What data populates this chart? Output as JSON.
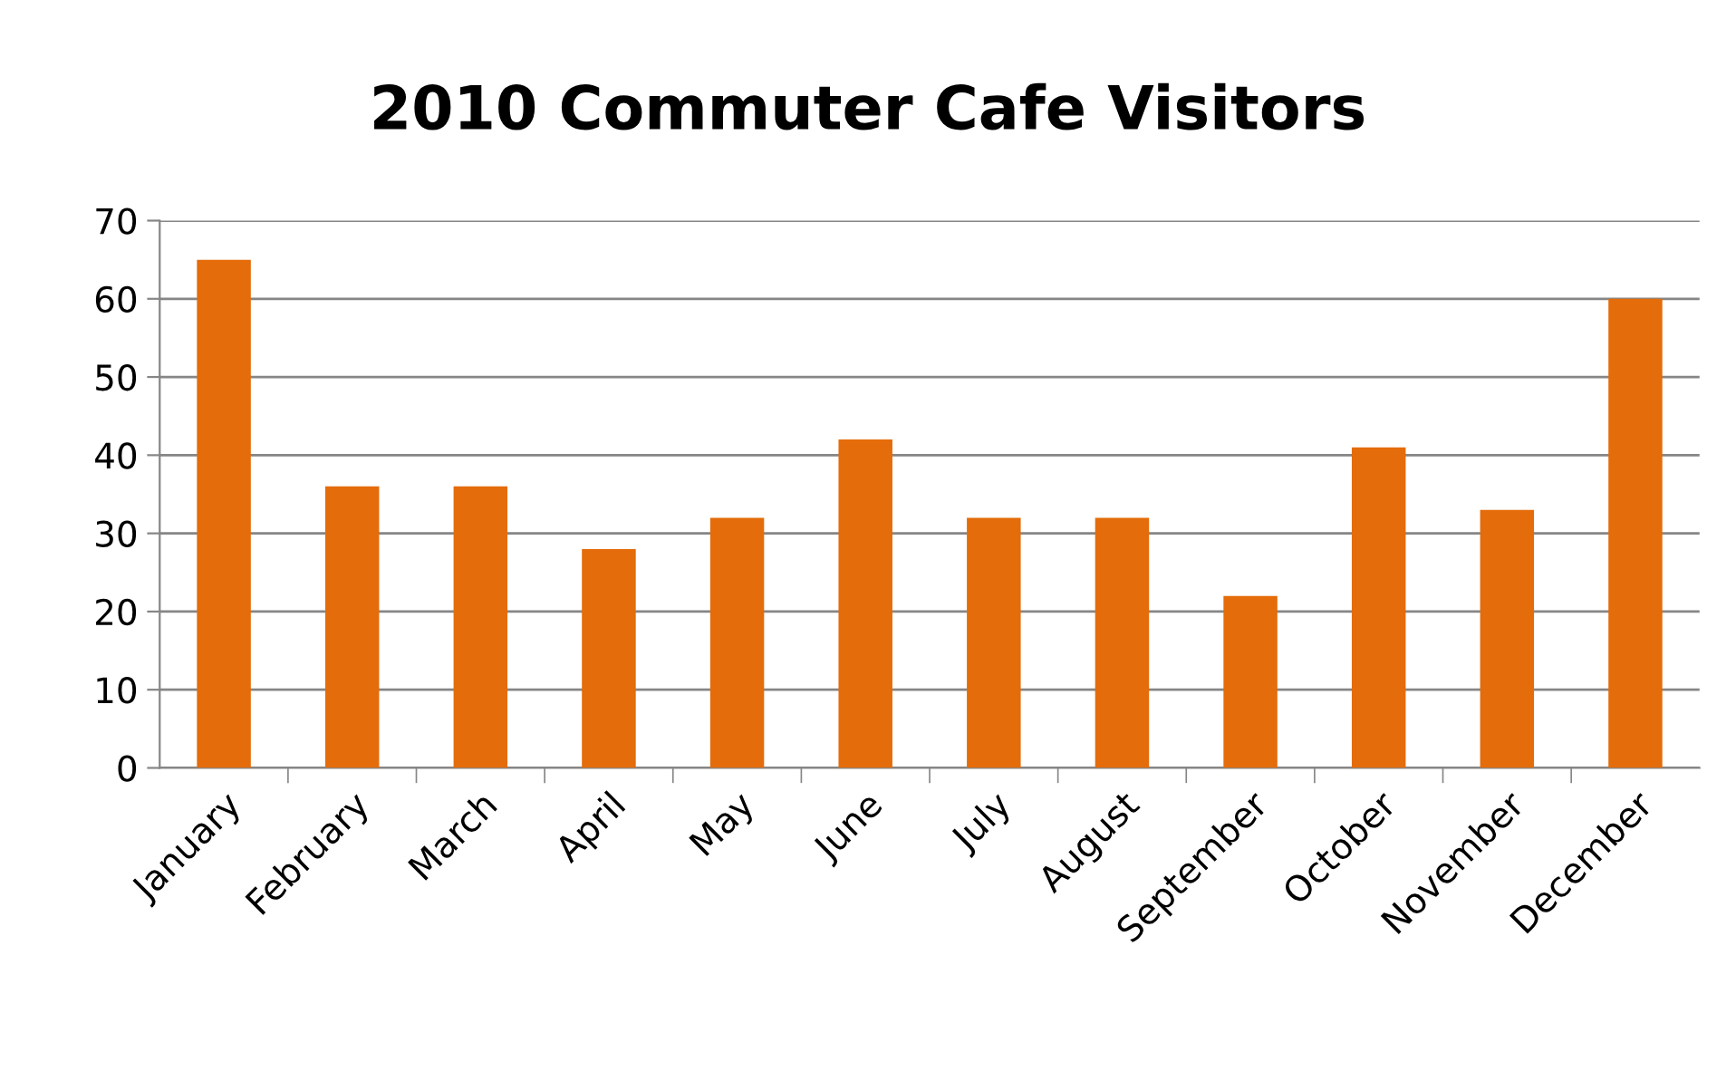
{
  "chart_data": {
    "type": "bar",
    "title": "2010 Commuter Cafe Visitors",
    "categories": [
      "January",
      "February",
      "March",
      "April",
      "May",
      "June",
      "July",
      "August",
      "September",
      "October",
      "November",
      "December"
    ],
    "values": [
      65,
      36,
      36,
      28,
      32,
      42,
      32,
      32,
      22,
      41,
      33,
      60
    ],
    "color": "#e46c0a",
    "ylim": [
      0,
      70
    ],
    "yticks": [
      0,
      10,
      20,
      30,
      40,
      50,
      60,
      70
    ],
    "grid": "y",
    "legend": false
  }
}
